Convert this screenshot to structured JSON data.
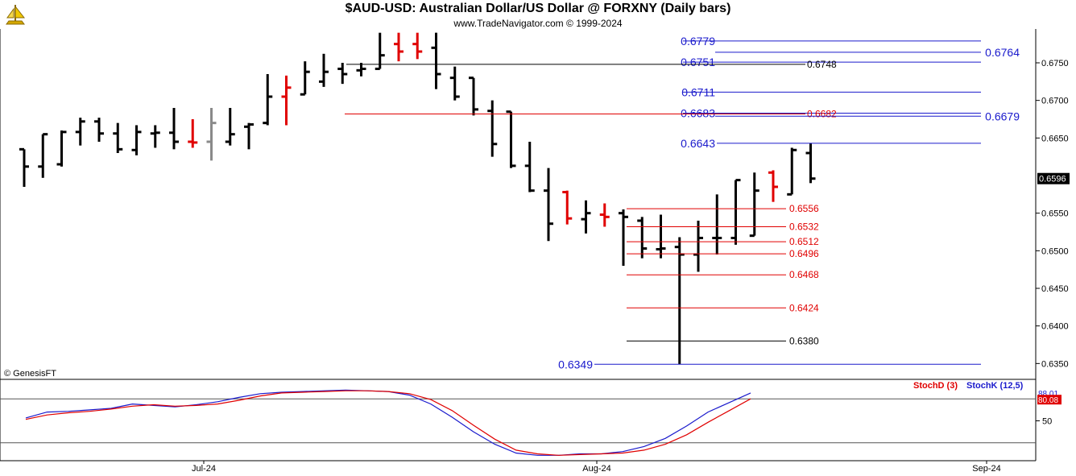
{
  "header": {
    "title": "$AUD-USD:  Australian Dollar/US Dollar @ FORXNY  (Daily bars)",
    "subtitle": "www.TradeNavigator.com © 1999-2024"
  },
  "watermark": "© GenesisFT",
  "colors": {
    "up_bar": "#000000",
    "down_bar": "#e00000",
    "neutral_bar": "#8a8a8a",
    "fib_blue": "#1a1acc",
    "fib_red": "#e00000",
    "stoch_k": "#1a1acc",
    "stoch_d": "#e00000"
  },
  "chart_data": [
    {
      "type": "ohlc",
      "title": "$AUD-USD:  Australian Dollar/US Dollar @ FORXNY  (Daily bars)",
      "x_labels": [
        "Jul-24",
        "Aug-24",
        "Sep-24"
      ],
      "y_ticks": [
        "0.6750",
        "0.6700",
        "0.6650",
        "0.6550",
        "0.6500",
        "0.6450",
        "0.6400",
        "0.6350"
      ],
      "ylim": [
        0.633,
        0.6795
      ],
      "last_price": "0.6596",
      "bars": [
        {
          "o": 0.6635,
          "h": 0.6635,
          "l": 0.6585,
          "c": 0.6612,
          "col": "up"
        },
        {
          "o": 0.6612,
          "h": 0.6655,
          "l": 0.6597,
          "c": 0.6655,
          "col": "up"
        },
        {
          "o": 0.6615,
          "h": 0.666,
          "l": 0.6612,
          "c": 0.6658,
          "col": "up"
        },
        {
          "o": 0.6658,
          "h": 0.6677,
          "l": 0.664,
          "c": 0.6672,
          "col": "up"
        },
        {
          "o": 0.6672,
          "h": 0.6677,
          "l": 0.6645,
          "c": 0.6656,
          "col": "up"
        },
        {
          "o": 0.6656,
          "h": 0.667,
          "l": 0.663,
          "c": 0.6635,
          "col": "up"
        },
        {
          "o": 0.6634,
          "h": 0.6667,
          "l": 0.6627,
          "c": 0.6658,
          "col": "up"
        },
        {
          "o": 0.6656,
          "h": 0.6667,
          "l": 0.6637,
          "c": 0.6657,
          "col": "up"
        },
        {
          "o": 0.6657,
          "h": 0.669,
          "l": 0.6635,
          "c": 0.6645,
          "col": "up"
        },
        {
          "o": 0.6645,
          "h": 0.6675,
          "l": 0.6637,
          "c": 0.6644,
          "col": "down"
        },
        {
          "o": 0.6645,
          "h": 0.669,
          "l": 0.662,
          "c": 0.667,
          "col": "neutral"
        },
        {
          "o": 0.6645,
          "h": 0.669,
          "l": 0.664,
          "c": 0.6655,
          "col": "up"
        },
        {
          "o": 0.6665,
          "h": 0.667,
          "l": 0.6635,
          "c": 0.6668,
          "col": "up"
        },
        {
          "o": 0.667,
          "h": 0.6735,
          "l": 0.6667,
          "c": 0.6705,
          "col": "up"
        },
        {
          "o": 0.6705,
          "h": 0.6733,
          "l": 0.6667,
          "c": 0.6717,
          "col": "down"
        },
        {
          "o": 0.6708,
          "h": 0.6752,
          "l": 0.6708,
          "c": 0.6738,
          "col": "up"
        },
        {
          "o": 0.6725,
          "h": 0.6762,
          "l": 0.6718,
          "c": 0.6738,
          "col": "up"
        },
        {
          "o": 0.6742,
          "h": 0.675,
          "l": 0.6722,
          "c": 0.6735,
          "col": "up"
        },
        {
          "o": 0.674,
          "h": 0.675,
          "l": 0.6732,
          "c": 0.6742,
          "col": "up"
        },
        {
          "o": 0.6742,
          "h": 0.679,
          "l": 0.6742,
          "c": 0.676,
          "col": "up"
        },
        {
          "o": 0.6775,
          "h": 0.679,
          "l": 0.6752,
          "c": 0.6765,
          "col": "down"
        },
        {
          "o": 0.6775,
          "h": 0.679,
          "l": 0.6755,
          "c": 0.6765,
          "col": "down"
        },
        {
          "o": 0.677,
          "h": 0.679,
          "l": 0.6715,
          "c": 0.6735,
          "col": "up"
        },
        {
          "o": 0.673,
          "h": 0.6745,
          "l": 0.67,
          "c": 0.6705,
          "col": "up"
        },
        {
          "o": 0.673,
          "h": 0.673,
          "l": 0.668,
          "c": 0.6688,
          "col": "up"
        },
        {
          "o": 0.6686,
          "h": 0.67,
          "l": 0.6625,
          "c": 0.6642,
          "col": "up"
        },
        {
          "o": 0.6685,
          "h": 0.6685,
          "l": 0.661,
          "c": 0.6613,
          "col": "up"
        },
        {
          "o": 0.6613,
          "h": 0.6645,
          "l": 0.6578,
          "c": 0.658,
          "col": "up"
        },
        {
          "o": 0.658,
          "h": 0.661,
          "l": 0.6513,
          "c": 0.6536,
          "col": "up"
        },
        {
          "o": 0.6578,
          "h": 0.658,
          "l": 0.6535,
          "c": 0.6543,
          "col": "down"
        },
        {
          "o": 0.6542,
          "h": 0.6567,
          "l": 0.6523,
          "c": 0.655,
          "col": "up"
        },
        {
          "o": 0.6548,
          "h": 0.6563,
          "l": 0.6532,
          "c": 0.6545,
          "col": "down"
        },
        {
          "o": 0.655,
          "h": 0.6555,
          "l": 0.648,
          "c": 0.6545,
          "col": "up"
        },
        {
          "o": 0.654,
          "h": 0.6545,
          "l": 0.649,
          "c": 0.6503,
          "col": "up"
        },
        {
          "o": 0.6502,
          "h": 0.6548,
          "l": 0.649,
          "c": 0.6503,
          "col": "up"
        },
        {
          "o": 0.6505,
          "h": 0.6518,
          "l": 0.6349,
          "c": 0.6495,
          "col": "up"
        },
        {
          "o": 0.6495,
          "h": 0.654,
          "l": 0.6472,
          "c": 0.6517,
          "col": "up"
        },
        {
          "o": 0.6517,
          "h": 0.6575,
          "l": 0.6495,
          "c": 0.6517,
          "col": "up"
        },
        {
          "o": 0.6517,
          "h": 0.6594,
          "l": 0.6508,
          "c": 0.6594,
          "col": "up"
        },
        {
          "o": 0.652,
          "h": 0.6604,
          "l": 0.652,
          "c": 0.658,
          "col": "up"
        },
        {
          "o": 0.6604,
          "h": 0.6607,
          "l": 0.6565,
          "c": 0.6585,
          "col": "down"
        },
        {
          "o": 0.6575,
          "h": 0.6637,
          "l": 0.6575,
          "c": 0.6634,
          "col": "up"
        },
        {
          "o": 0.663,
          "h": 0.6643,
          "l": 0.659,
          "c": 0.6596,
          "col": "up"
        }
      ],
      "levels": [
        {
          "value": 0.6779,
          "label": "0.6779",
          "color": "blue",
          "start": 0.6779
        },
        {
          "value": 0.6764,
          "label": "0.6764",
          "color": "blue"
        },
        {
          "value": 0.6751,
          "label": "0.6751",
          "color": "blue"
        },
        {
          "value": 0.6748,
          "label": "0.6748",
          "color": "black"
        },
        {
          "value": 0.6711,
          "label": "0.6711",
          "color": "blue"
        },
        {
          "value": 0.6683,
          "label": "0.6683",
          "color": "blue"
        },
        {
          "value": 0.6682,
          "label": "0.6682",
          "color": "red"
        },
        {
          "value": 0.6679,
          "label": "0.6679",
          "color": "blue"
        },
        {
          "value": 0.6643,
          "label": "0.6643",
          "color": "blue"
        },
        {
          "value": 0.6556,
          "label": "0.6556",
          "color": "red"
        },
        {
          "value": 0.6532,
          "label": "0.6532",
          "color": "red"
        },
        {
          "value": 0.6512,
          "label": "0.6512",
          "color": "red"
        },
        {
          "value": 0.6496,
          "label": "0.6496",
          "color": "red"
        },
        {
          "value": 0.6468,
          "label": "0.6468",
          "color": "red"
        },
        {
          "value": 0.6424,
          "label": "0.6424",
          "color": "red"
        },
        {
          "value": 0.638,
          "label": "0.6380",
          "color": "black"
        },
        {
          "value": 0.6349,
          "label": "0.6349",
          "color": "blue"
        }
      ]
    },
    {
      "type": "line",
      "title": "",
      "legend": [
        "StochD (3)",
        "StochK (12,5)"
      ],
      "y_ticks": [
        "50"
      ],
      "last_k": "88.01",
      "last_d": "80.08",
      "ylim": [
        0,
        100
      ],
      "guide_lines": [
        80,
        20
      ],
      "series": [
        {
          "name": "StochK (12,5)",
          "values": [
            54,
            62,
            63,
            65,
            67,
            73,
            71,
            69,
            72,
            76,
            82,
            87,
            89,
            90,
            91,
            92,
            91,
            90,
            85,
            73,
            55,
            35,
            18,
            6,
            3,
            3,
            5,
            5,
            8,
            15,
            26,
            43,
            62,
            75,
            88
          ]
        },
        {
          "name": "StochD (3)",
          "values": [
            52,
            58,
            61,
            63,
            66,
            70,
            72,
            70,
            71,
            73,
            78,
            84,
            88,
            89,
            90,
            91,
            91,
            90,
            87,
            79,
            64,
            44,
            25,
            10,
            5,
            3,
            4,
            5,
            6,
            10,
            18,
            31,
            48,
            64,
            80
          ]
        }
      ]
    }
  ]
}
